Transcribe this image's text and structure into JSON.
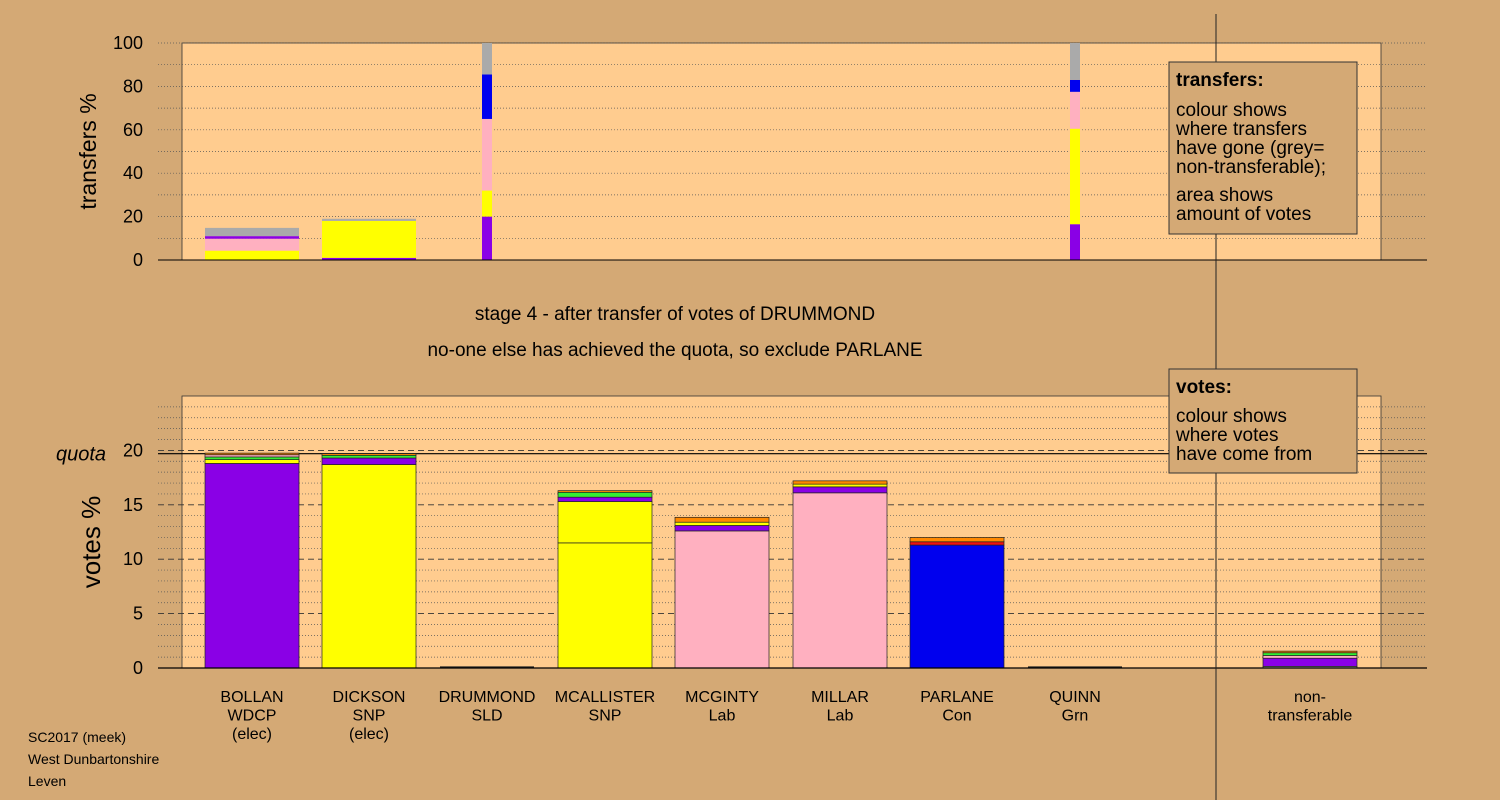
{
  "chart_data": [
    {
      "type": "bar",
      "name": "transfers",
      "ylabel": "transfers %",
      "ylim": [
        0,
        100
      ],
      "yticks": [
        0,
        20,
        40,
        60,
        80,
        100
      ],
      "legend": {
        "title": "transfers:",
        "lines": [
          "colour shows",
          "where transfers",
          "have gone (grey=",
          "non-transferable);",
          "area shows",
          "amount of votes"
        ]
      },
      "columns": [
        {
          "candidate": "BOLLAN",
          "segments": [
            {
              "color": "#ffff00",
              "value": 4.3
            },
            {
              "color": "#ffb0c0",
              "value": 5.5
            },
            {
              "color": "#8a00e6",
              "value": 1.2
            },
            {
              "color": "#aaaaaa",
              "value": 3.8
            }
          ]
        },
        {
          "candidate": "DICKSON",
          "segments": [
            {
              "color": "#8a00e6",
              "value": 1.0
            },
            {
              "color": "#ffff00",
              "value": 17.0
            },
            {
              "color": "#aaaaaa",
              "value": 1.0
            }
          ]
        },
        {
          "candidate": "DRUMMOND",
          "segments": [
            {
              "color": "#8a00e6",
              "value": 20
            },
            {
              "color": "#ffff00",
              "value": 12
            },
            {
              "color": "#ffb0c0",
              "value": 33
            },
            {
              "color": "#0000ee",
              "value": 20.5
            },
            {
              "color": "#aaaaaa",
              "value": 14.5
            }
          ]
        },
        {
          "candidate": "QUINN",
          "segments": [
            {
              "color": "#8a00e6",
              "value": 16.5
            },
            {
              "color": "#ffff00",
              "value": 44
            },
            {
              "color": "#ffb0c0",
              "value": 17
            },
            {
              "color": "#0000ee",
              "value": 5.5
            },
            {
              "color": "#aaaaaa",
              "value": 17
            }
          ]
        }
      ]
    },
    {
      "type": "bar",
      "name": "votes",
      "ylabel": "votes %",
      "ylim": [
        0,
        25
      ],
      "yticks": [
        0,
        5,
        10,
        15,
        20
      ],
      "quota": 19.7,
      "quota_label": "quota",
      "legend": {
        "title": "votes:",
        "lines": [
          "colour shows",
          "where votes",
          "have come from"
        ]
      },
      "categories": [
        {
          "name": "BOLLAN",
          "lines": [
            "BOLLAN",
            "WDCP",
            "(elec)"
          ],
          "segments": [
            {
              "color": "#8a00e6",
              "value": 18.8
            },
            {
              "color": "#ffff00",
              "value": 0.35
            },
            {
              "color": "#33ee33",
              "value": 0.25
            },
            {
              "color": "#ffb0c0",
              "value": 0.2
            },
            {
              "color": "#ff8800",
              "value": 0.15
            }
          ]
        },
        {
          "name": "DICKSON",
          "lines": [
            "DICKSON",
            "SNP",
            "(elec)"
          ],
          "segments": [
            {
              "color": "#ffff00",
              "value": 18.7
            },
            {
              "color": "#8a00e6",
              "value": 0.6
            },
            {
              "color": "#33ee33",
              "value": 0.25
            },
            {
              "color": "#ff8800",
              "value": 0.15
            }
          ]
        },
        {
          "name": "DRUMMOND",
          "lines": [
            "DRUMMOND",
            "SLD"
          ],
          "segments": []
        },
        {
          "name": "MCALLISTER",
          "lines": [
            "MCALLISTER",
            "SNP"
          ],
          "segments": [
            {
              "color": "#ffff00",
              "value": 11.5
            },
            {
              "color": "#ffff00",
              "value": 3.8
            },
            {
              "color": "#8a00e6",
              "value": 0.4
            },
            {
              "color": "#33ee33",
              "value": 0.45
            },
            {
              "color": "#ff8800",
              "value": 0.15
            }
          ]
        },
        {
          "name": "MCGINTY",
          "lines": [
            "MCGINTY",
            "Lab"
          ],
          "segments": [
            {
              "color": "#ffb0c0",
              "value": 12.6
            },
            {
              "color": "#8a00e6",
              "value": 0.5
            },
            {
              "color": "#ffff00",
              "value": 0.3
            },
            {
              "color": "#ff8800",
              "value": 0.45
            }
          ]
        },
        {
          "name": "MILLAR",
          "lines": [
            "MILLAR",
            "Lab"
          ],
          "segments": [
            {
              "color": "#ffb0c0",
              "value": 16.1
            },
            {
              "color": "#8a00e6",
              "value": 0.55
            },
            {
              "color": "#ffff00",
              "value": 0.25
            },
            {
              "color": "#ff8800",
              "value": 0.3
            }
          ]
        },
        {
          "name": "PARLANE",
          "lines": [
            "PARLANE",
            "Con"
          ],
          "segments": [
            {
              "color": "#0000ee",
              "value": 11.3
            },
            {
              "color": "#ee1111",
              "value": 0.3
            },
            {
              "color": "#ff8800",
              "value": 0.4
            }
          ]
        },
        {
          "name": "QUINN",
          "lines": [
            "QUINN",
            "Grn"
          ],
          "segments": []
        },
        {
          "name": "non-transferable",
          "lines": [
            "non-",
            "transferable"
          ],
          "segments": [
            {
              "color": "#aaaaaa",
              "value": 0.15
            },
            {
              "color": "#8a00e6",
              "value": 0.75
            },
            {
              "color": "#ffb0c0",
              "value": 0.25
            },
            {
              "color": "#33ee33",
              "value": 0.25
            },
            {
              "color": "#ff8800",
              "value": 0.15
            }
          ]
        }
      ]
    }
  ],
  "stage_title": "stage 4 - after transfer of votes of DRUMMOND",
  "stage_subtitle": "no-one else has achieved the quota, so exclude PARLANE",
  "footer": {
    "line1": "SC2017 (meek)",
    "line2": "West Dunbartonshire",
    "line3": "Leven"
  }
}
